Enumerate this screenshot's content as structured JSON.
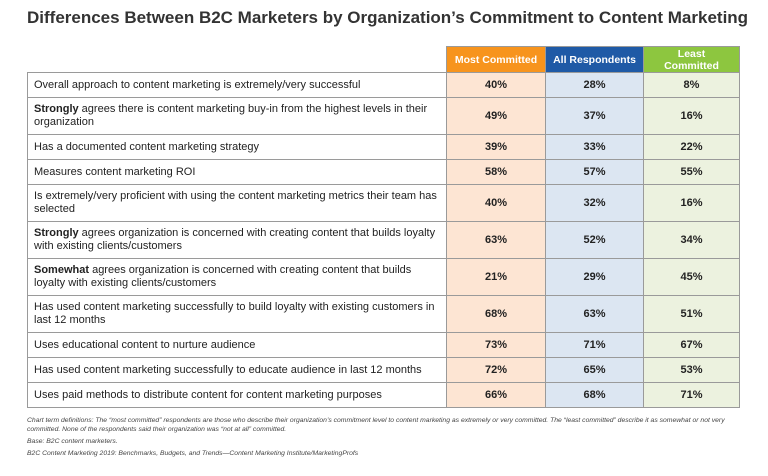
{
  "header": {
    "title": "Differences Between B2C Marketers by Organization’s Commitment to Content Marketing"
  },
  "table": {
    "columns": [
      "Most Committed",
      "All Respondents",
      "Least Committed"
    ],
    "rows": [
      {
        "label": "Overall approach to content marketing is extremely/very successful",
        "values": [
          "40%",
          "28%",
          "8%"
        ]
      },
      {
        "label_bold": "Strongly",
        "label": " agrees there is content marketing buy-in from the highest levels in their organization",
        "values": [
          "49%",
          "37%",
          "16%"
        ]
      },
      {
        "label": "Has a documented content marketing strategy",
        "values": [
          "39%",
          "33%",
          "22%"
        ]
      },
      {
        "label": "Measures content marketing ROI",
        "values": [
          "58%",
          "57%",
          "55%"
        ]
      },
      {
        "label": "Is extremely/very proficient with using the content marketing metrics their team has selected",
        "values": [
          "40%",
          "32%",
          "16%"
        ]
      },
      {
        "label_bold": "Strongly",
        "label": " agrees organization is concerned with creating content that builds loyalty with existing clients/customers",
        "values": [
          "63%",
          "52%",
          "34%"
        ]
      },
      {
        "label_bold": "Somewhat",
        "label": " agrees organization is concerned with creating content that builds loyalty with existing clients/customers",
        "values": [
          "21%",
          "29%",
          "45%"
        ]
      },
      {
        "label": "Has used content marketing successfully to build loyalty with existing customers in last 12 months",
        "values": [
          "68%",
          "63%",
          "51%"
        ]
      },
      {
        "label": "Uses educational content to nurture audience",
        "values": [
          "73%",
          "71%",
          "67%"
        ]
      },
      {
        "label": "Has used content marketing successfully to educate audience in last 12 months",
        "values": [
          "72%",
          "65%",
          "53%"
        ]
      },
      {
        "label": "Uses paid methods to distribute content for content marketing purposes",
        "values": [
          "66%",
          "68%",
          "71%"
        ]
      }
    ]
  },
  "footer": {
    "definitions": "Chart term definitions: The “most committed” respondents are those who describe their organization’s commitment level to content marketing as extremely or very committed. The “least committed” describe it as somewhat or not very committed. None of the respondents said their organization was “not at all” committed.",
    "base": "Base: B2C content marketers.",
    "source": "B2C Content Marketing 2019: Benchmarks, Budgets, and Trends—Content Marketing Institute/MarketingProfs"
  }
}
